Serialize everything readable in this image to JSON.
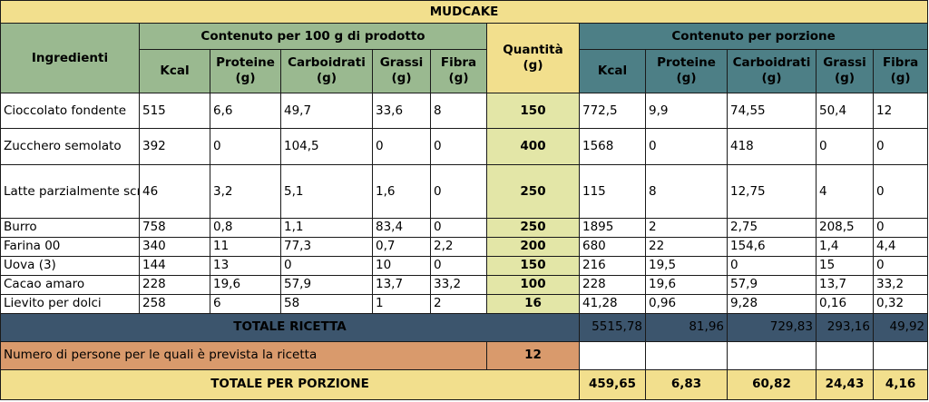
{
  "title": "MUDCAKE",
  "headers": {
    "per100g": "Contenuto per 100 g di prodotto",
    "quantity_line1": "Quantità",
    "quantity_line2": "(g)",
    "perPortion": "Contenuto per porzione",
    "ingredients": "Ingredienti",
    "columns": [
      {
        "line1": "Kcal",
        "line2": ""
      },
      {
        "line1": "Proteine",
        "line2": "(g)"
      },
      {
        "line1": "Carboidrati",
        "line2": "(g)"
      },
      {
        "line1": "Grassi",
        "line2": "(g)"
      },
      {
        "line1": "Fibra",
        "line2": "(g)"
      }
    ]
  },
  "rows": [
    {
      "name": "Cioccolato fondente",
      "per100": [
        "515",
        "6,6",
        "49,7",
        "33,6",
        "8"
      ],
      "qty": "150",
      "portion": [
        "772,5",
        "9,9",
        "74,55",
        "50,4",
        "12"
      ]
    },
    {
      "name": "Zucchero semolato",
      "per100": [
        "392",
        "0",
        "104,5",
        "0",
        "0"
      ],
      "qty": "400",
      "portion": [
        "1568",
        "0",
        "418",
        "0",
        "0"
      ]
    },
    {
      "name": "Latte parzialmente scremato",
      "per100": [
        "46",
        "3,2",
        "5,1",
        "1,6",
        "0"
      ],
      "qty": "250",
      "portion": [
        "115",
        "8",
        "12,75",
        "4",
        "0"
      ]
    },
    {
      "name": "Burro",
      "per100": [
        "758",
        "0,8",
        "1,1",
        "83,4",
        "0"
      ],
      "qty": "250",
      "portion": [
        "1895",
        "2",
        "2,75",
        "208,5",
        "0"
      ]
    },
    {
      "name": "Farina 00",
      "per100": [
        "340",
        "11",
        "77,3",
        "0,7",
        "2,2"
      ],
      "qty": "200",
      "portion": [
        "680",
        "22",
        "154,6",
        "1,4",
        "4,4"
      ]
    },
    {
      "name": "Uova (3)",
      "per100": [
        "144",
        "13",
        "0",
        "10",
        "0"
      ],
      "qty": "150",
      "portion": [
        "216",
        "19,5",
        "0",
        "15",
        "0"
      ]
    },
    {
      "name": "Cacao amaro",
      "per100": [
        "228",
        "19,6",
        "57,9",
        "13,7",
        "33,2"
      ],
      "qty": "100",
      "portion": [
        "228",
        "19,6",
        "57,9",
        "13,7",
        "33,2"
      ]
    },
    {
      "name": "Lievito per dolci",
      "per100": [
        "258",
        "6",
        "58",
        "1",
        "2"
      ],
      "qty": "16",
      "portion": [
        "41,28",
        "0,96",
        "9,28",
        "0,16",
        "0,32"
      ]
    }
  ],
  "totals": {
    "label": "TOTALE RICETTA",
    "values": [
      "5515,78",
      "81,96",
      "729,83",
      "293,16",
      "49,92"
    ]
  },
  "persons": {
    "label": "Numero di persone per le quali è prevista la ricetta",
    "value": "12"
  },
  "perPortionTotals": {
    "label": "TOTALE PER PORZIONE",
    "values": [
      "459,65",
      "6,83",
      "60,82",
      "24,43",
      "4,16"
    ]
  },
  "colors": {
    "title_bg": "#f2df8d",
    "green_header": "#9ab990",
    "teal_header": "#4d7f86",
    "quantity_col": "#e3e6a7",
    "total_row": "#3c556d",
    "persons_row": "#d99a6c"
  }
}
